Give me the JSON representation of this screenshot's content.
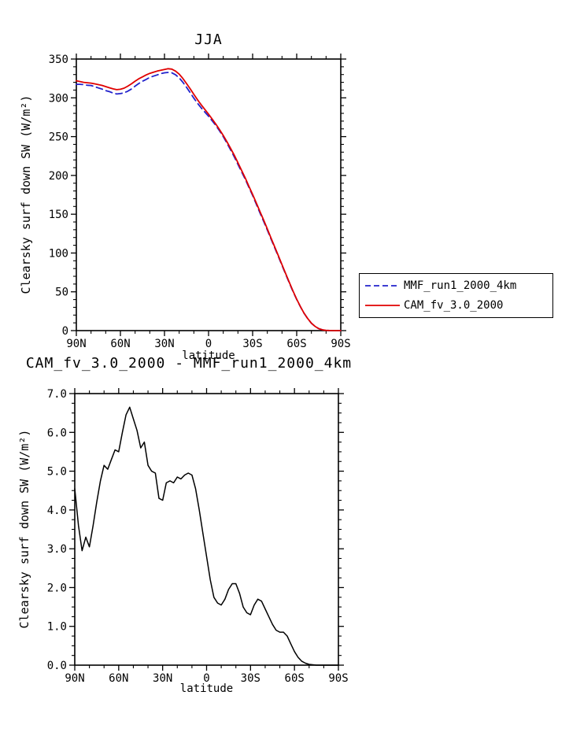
{
  "page": {
    "background": "#ffffff"
  },
  "colors": {
    "axis": "#000000",
    "mmf_line": "#2222cc",
    "cam_line": "#e00000",
    "diff_line": "#000000"
  },
  "legend": {
    "position": "outside-right-bottom"
  },
  "chart_data": [
    {
      "type": "line",
      "title": "JJA",
      "xlabel": "latitude",
      "ylabel": "Clearsky surf down SW (W/m²)",
      "xlim": [
        90,
        -90
      ],
      "ylim": [
        0,
        350
      ],
      "xticks": [
        90,
        60,
        30,
        0,
        -30,
        -60,
        -90
      ],
      "xtick_labels": [
        "90N",
        "60N",
        "30N",
        "0",
        "30S",
        "60S",
        "90S"
      ],
      "xminor_step": 10,
      "yticks": [
        0,
        50,
        100,
        150,
        200,
        250,
        300,
        350
      ],
      "ytick_labels": [
        "0",
        "50",
        "100",
        "150",
        "200",
        "250",
        "300",
        "350"
      ],
      "yminor_step": 10,
      "grid": false,
      "legend_position": "outside-right",
      "x": [
        90,
        87.5,
        85,
        82.5,
        80,
        77.5,
        75,
        72.5,
        70,
        67.5,
        65,
        62.5,
        60,
        57.5,
        55,
        52.5,
        50,
        47.5,
        45,
        42.5,
        40,
        37.5,
        35,
        32.5,
        30,
        27.5,
        25,
        22.5,
        20,
        17.5,
        15,
        12.5,
        10,
        7.5,
        5,
        2.5,
        0,
        -2.5,
        -5,
        -7.5,
        -10,
        -12.5,
        -15,
        -17.5,
        -20,
        -22.5,
        -25,
        -27.5,
        -30,
        -32.5,
        -35,
        -37.5,
        -40,
        -42.5,
        -45,
        -47.5,
        -50,
        -52.5,
        -55,
        -57.5,
        -60,
        -62.5,
        -65,
        -67.5,
        -70,
        -72.5,
        -75,
        -77.5,
        -80,
        -82.5,
        -85,
        -87.5,
        -90
      ],
      "series": [
        {
          "name": "MMF_run1_2000_4km",
          "color": "#2222cc",
          "dash": "dashed",
          "values": [
            317.45,
            317.4,
            317.05,
            316.2,
            315.95,
            314.4,
            312.8,
            311.25,
            309.35,
            307.95,
            306.2,
            304.95,
            305.5,
            306.5,
            308.55,
            311.35,
            315.15,
            318.45,
            321.4,
            323.75,
            326.35,
            328,
            329.55,
            331.2,
            332.25,
            332.8,
            332.25,
            329.8,
            325.65,
            320.2,
            313.6,
            306.55,
            299.6,
            292.95,
            287,
            281.6,
            276.2,
            270.3,
            264.25,
            257.4,
            249.95,
            241.8,
            233.05,
            223.9,
            214.4,
            204.65,
            195,
            184.65,
            174.2,
            162.95,
            151.8,
            140.85,
            129.55,
            118.25,
            106.95,
            95.6,
            84.15,
            72.65,
            61.25,
            50.45,
            40.15,
            30.8,
            22.4,
            15.45,
            9.48,
            5.49,
            2.5,
            1,
            0.3,
            0.1,
            0,
            0,
            0
          ]
        },
        {
          "name": "CAM_fv_3.0_2000",
          "color": "#e00000",
          "dash": "solid",
          "values": [
            322,
            321,
            320,
            319.5,
            319,
            318,
            317,
            316,
            314.5,
            313,
            311.5,
            310.5,
            311,
            312.5,
            315,
            318,
            321.5,
            324.5,
            327,
            329.5,
            331.5,
            333,
            334.5,
            335.5,
            336.5,
            337.5,
            337,
            334.5,
            330.5,
            325,
            318.5,
            311.5,
            304.5,
            297.5,
            291,
            285,
            279,
            272.5,
            266,
            259,
            251.5,
            243.5,
            235,
            226,
            216.5,
            206.5,
            196.5,
            186,
            175.5,
            164.5,
            153.5,
            142.5,
            131,
            119.5,
            108,
            96.5,
            85,
            73.5,
            62,
            51,
            40.5,
            31,
            22.5,
            15.5,
            9.5,
            5.5,
            2.5,
            1,
            0.3,
            0.1,
            0,
            0,
            0
          ]
        }
      ]
    },
    {
      "type": "line",
      "title": "CAM_fv_3.0_2000 - MMF_run1_2000_4km",
      "xlabel": "latitude",
      "ylabel": "Clearsky surf down SW (W/m²)",
      "xlim": [
        90,
        -90
      ],
      "ylim": [
        0,
        7
      ],
      "xticks": [
        90,
        60,
        30,
        0,
        -30,
        -60,
        -90
      ],
      "xtick_labels": [
        "90N",
        "60N",
        "30N",
        "0",
        "30S",
        "60S",
        "90S"
      ],
      "xminor_step": 10,
      "yticks": [
        0,
        1,
        2,
        3,
        4,
        5,
        6,
        7
      ],
      "ytick_labels": [
        "0.0",
        "1.0",
        "2.0",
        "3.0",
        "4.0",
        "5.0",
        "6.0",
        "7.0"
      ],
      "yminor_step": 0.25,
      "grid": false,
      "x": [
        90,
        87.5,
        85,
        82.5,
        80,
        77.5,
        75,
        72.5,
        70,
        67.5,
        65,
        62.5,
        60,
        57.5,
        55,
        52.5,
        50,
        47.5,
        45,
        42.5,
        40,
        37.5,
        35,
        32.5,
        30,
        27.5,
        25,
        22.5,
        20,
        17.5,
        15,
        12.5,
        10,
        7.5,
        5,
        2.5,
        0,
        -2.5,
        -5,
        -7.5,
        -10,
        -12.5,
        -15,
        -17.5,
        -20,
        -22.5,
        -25,
        -27.5,
        -30,
        -32.5,
        -35,
        -37.5,
        -40,
        -42.5,
        -45,
        -47.5,
        -50,
        -52.5,
        -55,
        -57.5,
        -60,
        -62.5,
        -65,
        -67.5,
        -70,
        -72.5,
        -75,
        -77.5,
        -80,
        -82.5,
        -85,
        -87.5,
        -90
      ],
      "series": [
        {
          "name": "CAM_fv_3.0_2000 - MMF_run1_2000_4km",
          "color": "#000000",
          "dash": "solid",
          "values": [
            4.55,
            3.6,
            2.95,
            3.3,
            3.05,
            3.6,
            4.2,
            4.75,
            5.15,
            5.05,
            5.3,
            5.55,
            5.5,
            6.0,
            6.45,
            6.65,
            6.35,
            6.05,
            5.6,
            5.75,
            5.15,
            5.0,
            4.95,
            4.3,
            4.25,
            4.7,
            4.75,
            4.7,
            4.85,
            4.8,
            4.9,
            4.95,
            4.9,
            4.55,
            4.0,
            3.4,
            2.8,
            2.2,
            1.75,
            1.6,
            1.55,
            1.7,
            1.95,
            2.1,
            2.1,
            1.85,
            1.5,
            1.35,
            1.3,
            1.55,
            1.7,
            1.65,
            1.45,
            1.25,
            1.05,
            0.9,
            0.85,
            0.85,
            0.75,
            0.55,
            0.35,
            0.2,
            0.1,
            0.05,
            0.02,
            0.01,
            0,
            0,
            0,
            0,
            0,
            0,
            0
          ]
        }
      ]
    }
  ]
}
